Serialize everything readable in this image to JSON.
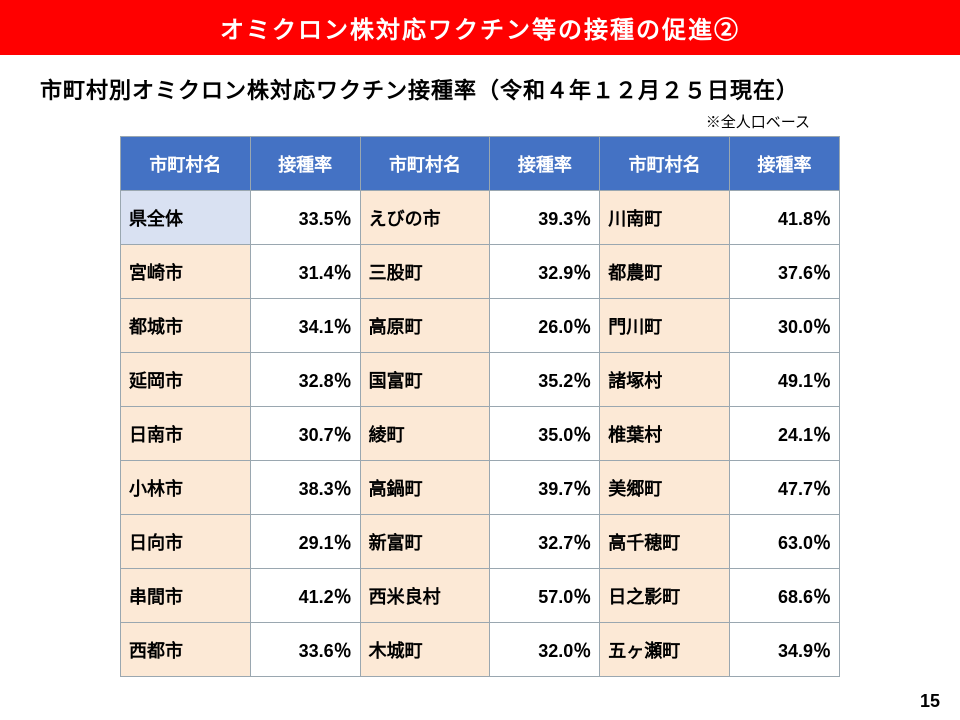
{
  "banner": "オミクロン株対応ワクチン等の接種の促進②",
  "subtitle": "市町村別オミクロン株対応ワクチン接種率（令和４年１２月２５日現在）",
  "note": "※全人口ベース",
  "page_number": "15",
  "table": {
    "headers": [
      "市町村名",
      "接種率",
      "市町村名",
      "接種率",
      "市町村名",
      "接種率"
    ],
    "header_bg": "#4472c4",
    "header_fg": "#ffffff",
    "name_bg": "#fce9d6",
    "special_bg": "#d9e1f2",
    "border_color": "#9aa7b0",
    "rows": [
      {
        "c1n": "県全体",
        "c1r": "33.5％",
        "c1special": true,
        "c2n": "えびの市",
        "c2r": "39.3％",
        "c3n": "川南町",
        "c3r": "41.8％"
      },
      {
        "c1n": "宮崎市",
        "c1r": "31.4％",
        "c1special": false,
        "c2n": "三股町",
        "c2r": "32.9％",
        "c3n": "都農町",
        "c3r": "37.6％"
      },
      {
        "c1n": "都城市",
        "c1r": "34.1％",
        "c1special": false,
        "c2n": "高原町",
        "c2r": "26.0％",
        "c3n": "門川町",
        "c3r": "30.0％"
      },
      {
        "c1n": "延岡市",
        "c1r": "32.8％",
        "c1special": false,
        "c2n": "国富町",
        "c2r": "35.2％",
        "c3n": "諸塚村",
        "c3r": "49.1％"
      },
      {
        "c1n": "日南市",
        "c1r": "30.7％",
        "c1special": false,
        "c2n": "綾町",
        "c2r": "35.0％",
        "c3n": "椎葉村",
        "c3r": "24.1％"
      },
      {
        "c1n": "小林市",
        "c1r": "38.3％",
        "c1special": false,
        "c2n": "高鍋町",
        "c2r": "39.7％",
        "c3n": "美郷町",
        "c3r": "47.7％"
      },
      {
        "c1n": "日向市",
        "c1r": "29.1％",
        "c1special": false,
        "c2n": "新富町",
        "c2r": "32.7％",
        "c3n": "高千穂町",
        "c3r": "63.0％"
      },
      {
        "c1n": "串間市",
        "c1r": "41.2％",
        "c1special": false,
        "c2n": "西米良村",
        "c2r": "57.0％",
        "c3n": "日之影町",
        "c3r": "68.6％"
      },
      {
        "c1n": "西都市",
        "c1r": "33.6％",
        "c1special": false,
        "c2n": "木城町",
        "c2r": "32.0％",
        "c3n": "五ヶ瀬町",
        "c3r": "34.9％"
      }
    ]
  }
}
